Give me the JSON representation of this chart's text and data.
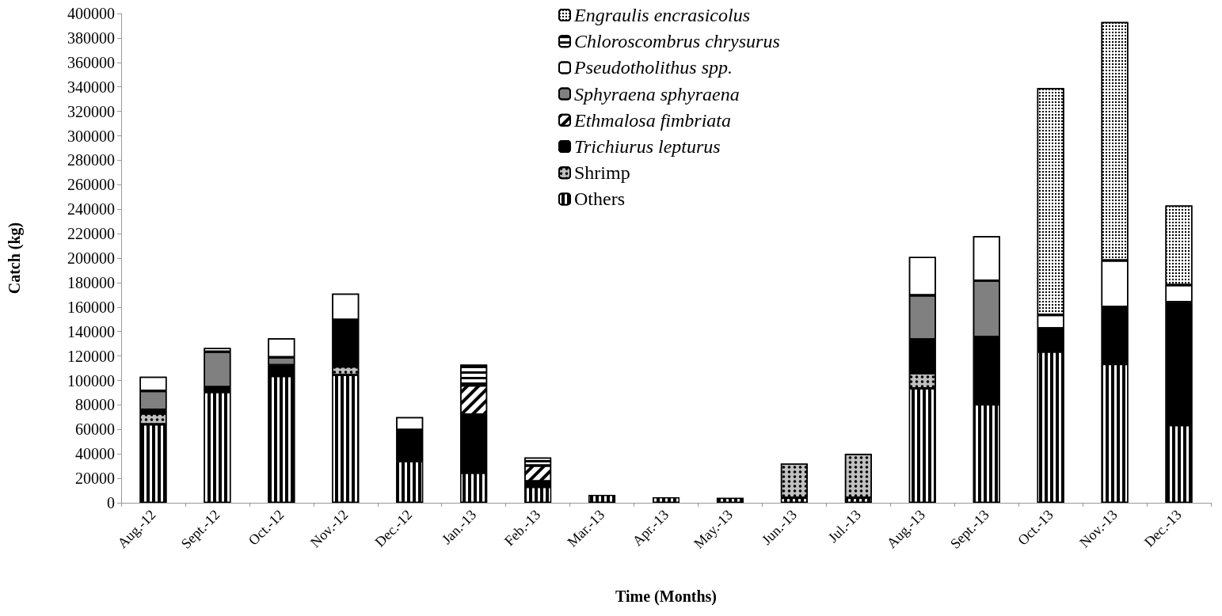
{
  "chart_data": {
    "type": "bar",
    "stacked": true,
    "xlabel": "Time (Months)",
    "ylabel": "Catch (kg)",
    "categories": [
      "Aug.-12",
      "Sept.-12",
      "Oct.-12",
      "Nov.-12",
      "Dec.-12",
      "Jan.-13",
      "Feb.-13",
      "Mar.-13",
      "Apr.-13",
      "May.-13",
      "Jun.-13",
      "Jul.-13",
      "Aug.-13",
      "Sept.-13",
      "Oct.-13",
      "Nov.-13",
      "Dec.-13"
    ],
    "ylim": [
      0,
      400000
    ],
    "yticks": [
      0,
      20000,
      40000,
      60000,
      80000,
      100000,
      120000,
      140000,
      160000,
      180000,
      200000,
      220000,
      240000,
      260000,
      280000,
      300000,
      320000,
      340000,
      360000,
      380000,
      400000
    ],
    "grid": false,
    "legend": "top",
    "series": [
      {
        "name": "Others",
        "color": "#000000",
        "values": [
          64000,
          90500,
          103500,
          104500,
          34000,
          24500,
          13000,
          6500,
          4500,
          4000,
          4000,
          4000,
          93500,
          80500,
          123500,
          113500,
          63500
        ]
      },
      {
        "name": "Shrimp",
        "color": "#c0c0c0",
        "values": [
          9000,
          null,
          null,
          7000,
          null,
          null,
          null,
          null,
          null,
          null,
          28000,
          36000,
          12500,
          null,
          null,
          null,
          null
        ]
      },
      {
        "name": "Trichiurus lepturus",
        "color": "#000000",
        "values": [
          3000,
          4000,
          9000,
          38000,
          25500,
          47500,
          4500,
          null,
          null,
          null,
          null,
          null,
          27500,
          55000,
          19000,
          46500,
          100500
        ]
      },
      {
        "name": "Ethmalosa fimbriata",
        "color": "#ffffff",
        "values": [
          null,
          null,
          null,
          null,
          null,
          24000,
          13000,
          null,
          null,
          null,
          null,
          null,
          null,
          null,
          null,
          null,
          null
        ]
      },
      {
        "name": "Sphyraena sphyraena",
        "color": "#808080",
        "values": [
          15500,
          29000,
          6500,
          null,
          null,
          null,
          null,
          null,
          null,
          null,
          null,
          null,
          36000,
          46000,
          null,
          null,
          null
        ]
      },
      {
        "name": "Pseudotholithus spp.",
        "color": "#ffffff",
        "values": [
          11500,
          3000,
          15500,
          21500,
          10500,
          null,
          null,
          null,
          null,
          null,
          null,
          null,
          31500,
          36500,
          11000,
          38000,
          14000
        ]
      },
      {
        "name": "Chloroscombrus chrysurus",
        "color": "#ffffff",
        "values": [
          null,
          null,
          null,
          null,
          null,
          17000,
          6500,
          null,
          null,
          null,
          null,
          null,
          null,
          null,
          null,
          null,
          null
        ]
      },
      {
        "name": "Engraulis encrasicolus",
        "color": "#ffffff",
        "values": [
          null,
          null,
          null,
          null,
          null,
          null,
          null,
          null,
          null,
          null,
          null,
          null,
          null,
          null,
          185500,
          195000,
          65000
        ]
      }
    ]
  }
}
